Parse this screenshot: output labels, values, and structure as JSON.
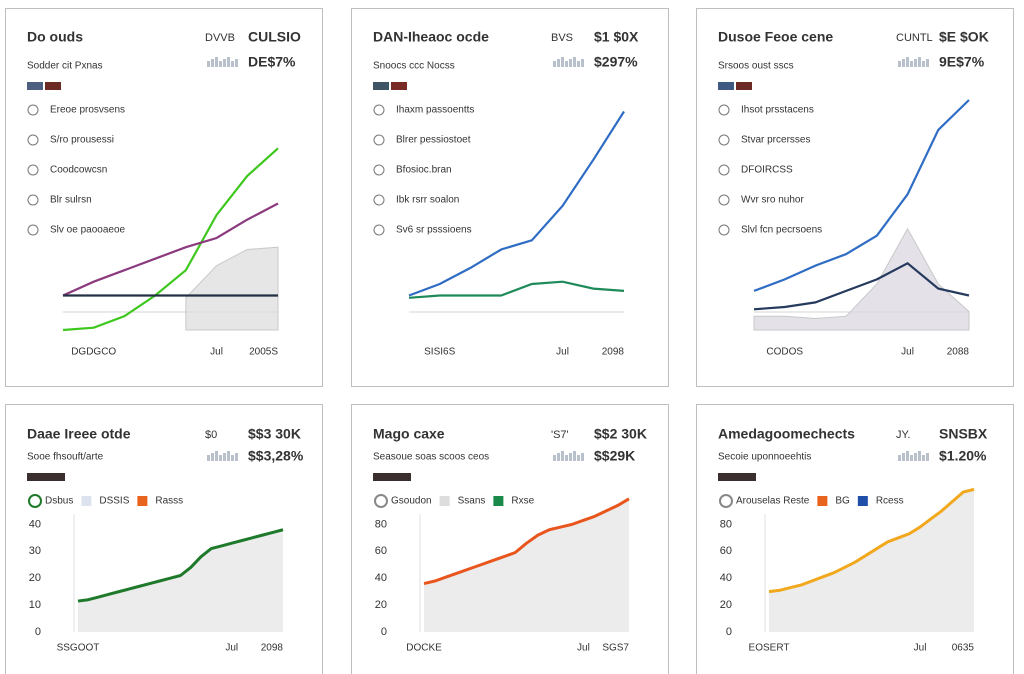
{
  "chart_data": [
    {
      "type": "line",
      "title": "Do ouds",
      "subtitle": "Sodder cit Pxnas",
      "stat_label": "DVVB",
      "stats": [
        "CULSIO",
        "DE$7%"
      ],
      "stat_colors": [
        "#2b3440",
        "#c0392b"
      ],
      "swatches": [
        "#4d5f80",
        "#6b2a24"
      ],
      "options": [
        "Ereoe prosvsens",
        "S/ro prousessi",
        "Coodcowcsn",
        "Blr sulrsn",
        "Slv oe paooaeoe"
      ],
      "categories": [
        null,
        "DGDGCO",
        null,
        null,
        null,
        "Jul",
        null,
        "2005S"
      ],
      "ylim": [
        0,
        100
      ],
      "series": [
        {
          "color": "#dcdcdc",
          "fill": true,
          "values": [
            null,
            null,
            null,
            null,
            14,
            28,
            35,
            36
          ]
        },
        {
          "color": "#3ec81e",
          "values": [
            0,
            1,
            6,
            15,
            26,
            50,
            67,
            79
          ]
        },
        {
          "color": "#8b3a7e",
          "values": [
            15,
            21,
            26,
            31,
            36,
            40,
            48,
            55
          ]
        },
        {
          "color": "#233145",
          "values": [
            15,
            15,
            15,
            15,
            15,
            15,
            15,
            15
          ]
        }
      ]
    },
    {
      "type": "line",
      "title": "DAN-Iheaoc ocde",
      "subtitle": "Snoocs ccc Nocss",
      "stat_label": "BVS",
      "stats": [
        "$1 $0X",
        "$297%"
      ],
      "stat_colors": [
        "#2b3440",
        "#2b3440"
      ],
      "swatches": [
        "#3f5566",
        "#7a2a24"
      ],
      "options": [
        "Ihaxm passoentts",
        "Blrer pessiostoet",
        "Bfosioc.bran",
        "Ibk rsrr soalon",
        "Sv6 sr psssioens"
      ],
      "categories": [
        null,
        "SISI6S",
        null,
        null,
        null,
        "Jul",
        null,
        "2098"
      ],
      "ylim": [
        0,
        100
      ],
      "series": [
        {
          "color": "#2f6cc4",
          "values": [
            15,
            20,
            27,
            35,
            39,
            54,
            74,
            95
          ]
        },
        {
          "color": "#1e8a5a",
          "values": [
            14,
            15,
            15,
            15,
            20,
            21,
            18,
            17
          ]
        }
      ]
    },
    {
      "type": "line",
      "title": "Dusoe Feoe cene",
      "subtitle": "Srsoos oust sscs",
      "stat_label": "CUNTL",
      "stats": [
        "$E $OK",
        "9E$7%"
      ],
      "stat_colors": [
        "#2b3440",
        "#2b3440"
      ],
      "swatches": [
        "#3f5a80",
        "#6b2a24"
      ],
      "options": [
        "Ihsot prsstacens",
        "Stvar prcersses",
        "DFOIRCSS",
        "Wvr sro nuhor",
        "Slvl fcn pecrsoens"
      ],
      "categories": [
        null,
        "CODOS",
        null,
        null,
        null,
        "Jul",
        null,
        "2088"
      ],
      "ylim": [
        0,
        100
      ],
      "series": [
        {
          "color": "#d8d6de",
          "fill": true,
          "values": [
            6,
            6,
            5,
            6,
            20,
            44,
            20,
            8
          ]
        },
        {
          "color": "#2f6cc4",
          "values": [
            17,
            22,
            28,
            33,
            41,
            59,
            87,
            100
          ]
        },
        {
          "color": "#263a5e",
          "values": [
            9,
            10,
            12,
            17,
            22,
            29,
            18,
            15
          ]
        }
      ]
    },
    {
      "type": "area",
      "title": "Daae Ireee otde",
      "subtitle": "Sooe fhsouft/arte",
      "stat_label": "$0",
      "stats": [
        "$$3 30K",
        "$$3,28%"
      ],
      "stat_colors": [
        "#2b3440",
        "#1e7a2a"
      ],
      "swatches": [
        "#3a2e2e"
      ],
      "legend_items": [
        {
          "label": "Dsbus",
          "color": "#1e7a2a"
        },
        {
          "label": "DSSIS",
          "color": "#dde3ee"
        },
        {
          "label": "Rasss",
          "color": "#e8641e"
        }
      ],
      "categories": [
        "SSGOOT",
        null,
        null,
        null,
        null,
        null,
        null,
        null,
        null,
        null,
        null,
        null,
        null,
        null,
        null,
        "Jul",
        null,
        null,
        null,
        null,
        "2098"
      ],
      "ylim": [
        0,
        55
      ],
      "yticks": [
        0,
        10,
        20,
        30,
        40
      ],
      "series": [
        {
          "color": "#1e7a2a",
          "values": [
            11.5,
            12,
            13,
            14,
            15,
            16,
            17,
            18,
            19,
            20,
            21,
            24,
            28,
            31,
            32,
            33,
            34,
            35,
            36,
            37,
            38
          ]
        }
      ]
    },
    {
      "type": "area",
      "title": "Mago caxe",
      "subtitle": "Seasoue soas scoos ceos",
      "stat_label": "'S7'",
      "stats": [
        "$$2 30K",
        "$$29K"
      ],
      "stat_colors": [
        "#2b3440",
        "#2b3440"
      ],
      "swatches": [
        "#3a2e2e"
      ],
      "legend_items": [
        {
          "label": "Gsoudon",
          "color": "#888888"
        },
        {
          "label": "Ssans",
          "color": "#dddddd"
        },
        {
          "label": "Rxse",
          "color": "#1a8a4a"
        }
      ],
      "categories": [
        "DOCKE",
        null,
        null,
        null,
        null,
        null,
        null,
        null,
        null,
        null,
        null,
        null,
        null,
        null,
        "Jul",
        null,
        null,
        null,
        "SGS7"
      ],
      "ylim": [
        0,
        110
      ],
      "yticks": [
        0,
        20,
        40,
        60,
        80
      ],
      "series": [
        {
          "color": "#e8561e",
          "values": [
            36,
            38,
            41,
            44,
            47,
            50,
            53,
            56,
            59,
            66,
            72,
            76,
            78,
            80,
            83,
            86,
            90,
            94,
            99
          ]
        }
      ]
    },
    {
      "type": "area",
      "title": "Amedagoomechects",
      "subtitle": "Secoie uponnoeehtis",
      "stat_label": "JY.",
      "stats": [
        "SNSBX",
        "$1.20%"
      ],
      "stat_colors": [
        "#2b3440",
        "#f0a500"
      ],
      "swatches": [
        "#3a2e2e"
      ],
      "legend_items": [
        {
          "label": "Arouselas Reste",
          "color": "#888888"
        },
        {
          "label": "BG",
          "color": "#e8641e"
        },
        {
          "label": "Rcess",
          "color": "#1f4fa8"
        }
      ],
      "categories": [
        "EOSERT",
        null,
        null,
        null,
        null,
        null,
        null,
        null,
        null,
        null,
        null,
        null,
        null,
        null,
        "Jul",
        null,
        null,
        null,
        null,
        "0635"
      ],
      "ylim": [
        0,
        110
      ],
      "yticks": [
        0,
        20,
        40,
        60,
        80
      ],
      "series": [
        {
          "color": "#f2a81d",
          "values": [
            30,
            31,
            33,
            35,
            38,
            41,
            44,
            48,
            52,
            57,
            62,
            67,
            70,
            73,
            78,
            84,
            90,
            97,
            104,
            106
          ]
        }
      ]
    }
  ]
}
